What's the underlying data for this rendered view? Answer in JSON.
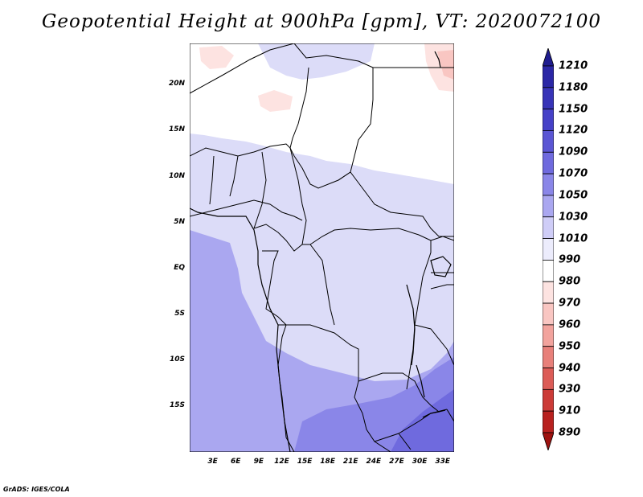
{
  "title": "Geopotential Height at 900hPa [gpm], VT: 2020072100",
  "credit": "GrADS: IGES/COLA",
  "map": {
    "lat_labels": [
      "20N",
      "15N",
      "10N",
      "5N",
      "EQ",
      "5S",
      "10S",
      "15S"
    ],
    "lon_labels": [
      "3E",
      "6E",
      "9E",
      "12E",
      "15E",
      "18E",
      "21E",
      "24E",
      "27E",
      "30E",
      "33E"
    ],
    "lon_range": [
      0,
      34.5
    ],
    "lat_range": [
      -20,
      24.5
    ]
  },
  "colorbar": {
    "levels": [
      "1210",
      "1180",
      "1150",
      "1120",
      "1090",
      "1070",
      "1050",
      "1030",
      "1010",
      "990",
      "980",
      "970",
      "960",
      "950",
      "940",
      "930",
      "910",
      "890"
    ],
    "colors": [
      "#1f1c8f",
      "#2b27a6",
      "#3834b8",
      "#4641c8",
      "#5b56d4",
      "#6f6ade",
      "#8a86e8",
      "#aaa7f0",
      "#cfcdf7",
      "#ececfc",
      "#ffffff",
      "#fde3e1",
      "#f9c6c2",
      "#f2a39d",
      "#e8807a",
      "#dc5c57",
      "#cc3b37",
      "#b8211f",
      "#9e1210"
    ]
  },
  "field": {
    "units": "gpm",
    "level": "900hPa",
    "valid_time": "2020072100"
  }
}
